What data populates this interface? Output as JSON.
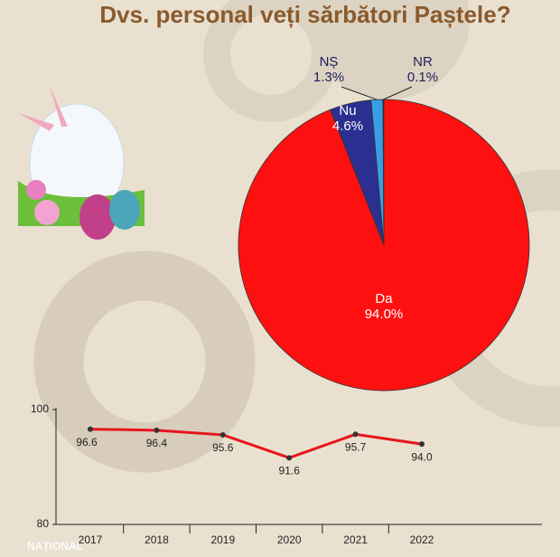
{
  "chart_data": [
    {
      "type": "pie",
      "title": "Dvs. personal veți sărbători Paștele?",
      "categories": [
        "Da",
        "Nu",
        "NȘ",
        "NR"
      ],
      "values": [
        94.0,
        4.6,
        1.3,
        0.1
      ],
      "value_labels": [
        "94.0%",
        "4.6%",
        "1.3%",
        "0.1%"
      ],
      "colors": [
        "#ff1010",
        "#2b2f8f",
        "#3a9ee6",
        "#1c1f5e"
      ]
    },
    {
      "type": "line",
      "categories": [
        "2017",
        "2018",
        "2019",
        "2020",
        "2021",
        "2022"
      ],
      "series": [
        {
          "name": null,
          "color": "#e8141c",
          "values": [
            96.6,
            96.4,
            95.6,
            91.6,
            95.7,
            94.0
          ],
          "value_labels": [
            "96.6",
            "96.4",
            "95.6",
            "91.6",
            "95.7",
            "94.0"
          ]
        }
      ],
      "ylim": [
        80,
        100
      ],
      "yticks": [
        80,
        100
      ]
    }
  ],
  "watermark": "NAȚIONAL"
}
